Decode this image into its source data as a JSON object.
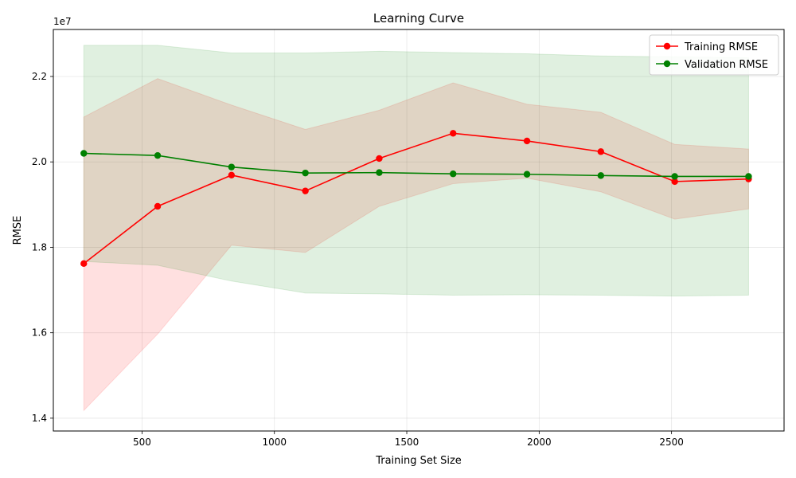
{
  "chart_data": {
    "type": "line",
    "title": "Learning Curve",
    "xlabel": "Training Set Size",
    "ylabel": "RMSE",
    "y_offset_label": "1e7",
    "xlim": [
      165,
      2925
    ],
    "ylim": [
      13.7,
      23.1
    ],
    "x_ticks": [
      500,
      1000,
      1500,
      2000,
      2500
    ],
    "x_tick_labels": [
      "500",
      "1000",
      "1500",
      "2000",
      "2500"
    ],
    "y_ticks": [
      14,
      16,
      18,
      20,
      22
    ],
    "y_tick_labels": [
      "1.4",
      "1.6",
      "1.8",
      "2.0",
      "2.2"
    ],
    "grid": true,
    "legend_position": "top-right",
    "x": [
      280,
      559,
      838,
      1117,
      1396,
      1675,
      1954,
      2233,
      2512,
      2791
    ],
    "series": [
      {
        "name": "Training RMSE",
        "color": "#ff0000",
        "band_color": "#ff0000",
        "values": [
          17.62,
          18.96,
          19.69,
          19.32,
          20.08,
          20.67,
          20.49,
          20.24,
          19.54,
          19.6
        ],
        "upper": [
          21.05,
          21.95,
          21.33,
          20.76,
          21.21,
          21.85,
          21.35,
          21.16,
          20.41,
          20.3
        ],
        "lower": [
          14.18,
          15.97,
          18.05,
          17.88,
          18.96,
          19.49,
          19.62,
          19.3,
          18.66,
          18.9
        ]
      },
      {
        "name": "Validation RMSE",
        "color": "#008000",
        "band_color": "#008000",
        "values": [
          20.2,
          20.15,
          19.88,
          19.74,
          19.75,
          19.72,
          19.71,
          19.68,
          19.66,
          19.66
        ],
        "upper": [
          22.73,
          22.73,
          22.55,
          22.55,
          22.59,
          22.56,
          22.53,
          22.48,
          22.46,
          22.44
        ],
        "lower": [
          17.67,
          17.58,
          17.21,
          16.93,
          16.91,
          16.88,
          16.89,
          16.88,
          16.86,
          16.88
        ]
      }
    ]
  }
}
